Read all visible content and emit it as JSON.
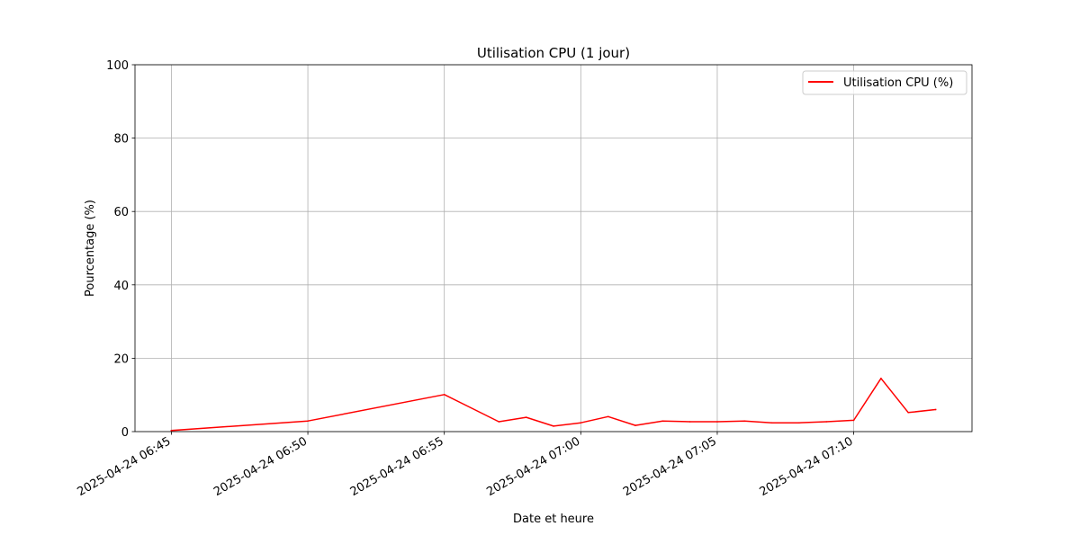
{
  "chart_data": {
    "type": "line",
    "title": "Utilisation CPU (1 jour)",
    "xlabel": "Date et heure",
    "ylabel": "Pourcentage (%)",
    "ylim": [
      0,
      100
    ],
    "xlim": [
      "2025-04-24 06:43:40",
      "2025-04-24 07:14:20"
    ],
    "x_ticks": [
      "2025-04-24 06:45",
      "2025-04-24 06:50",
      "2025-04-24 06:55",
      "2025-04-24 07:00",
      "2025-04-24 07:05",
      "2025-04-24 07:10"
    ],
    "y_ticks": [
      0,
      20,
      40,
      60,
      80,
      100
    ],
    "grid": true,
    "legend_position": "top-right",
    "series": [
      {
        "name": "Utilisation CPU (%)",
        "color": "#ff0000",
        "x": [
          "2025-04-24 06:45:00",
          "2025-04-24 06:50:00",
          "2025-04-24 06:55:00",
          "2025-04-24 06:57:00",
          "2025-04-24 06:58:00",
          "2025-04-24 06:59:00",
          "2025-04-24 07:00:00",
          "2025-04-24 07:01:00",
          "2025-04-24 07:02:00",
          "2025-04-24 07:03:00",
          "2025-04-24 07:04:00",
          "2025-04-24 07:05:00",
          "2025-04-24 07:06:00",
          "2025-04-24 07:07:00",
          "2025-04-24 07:08:00",
          "2025-04-24 07:09:00",
          "2025-04-24 07:10:00",
          "2025-04-24 07:11:00",
          "2025-04-24 07:12:00",
          "2025-04-24 07:13:00"
        ],
        "y": [
          0.3,
          2.9,
          10.1,
          2.7,
          3.9,
          1.5,
          2.4,
          4.1,
          1.7,
          2.9,
          2.7,
          2.7,
          2.9,
          2.4,
          2.4,
          2.7,
          3.1,
          14.5,
          5.2,
          6.0
        ]
      }
    ]
  }
}
